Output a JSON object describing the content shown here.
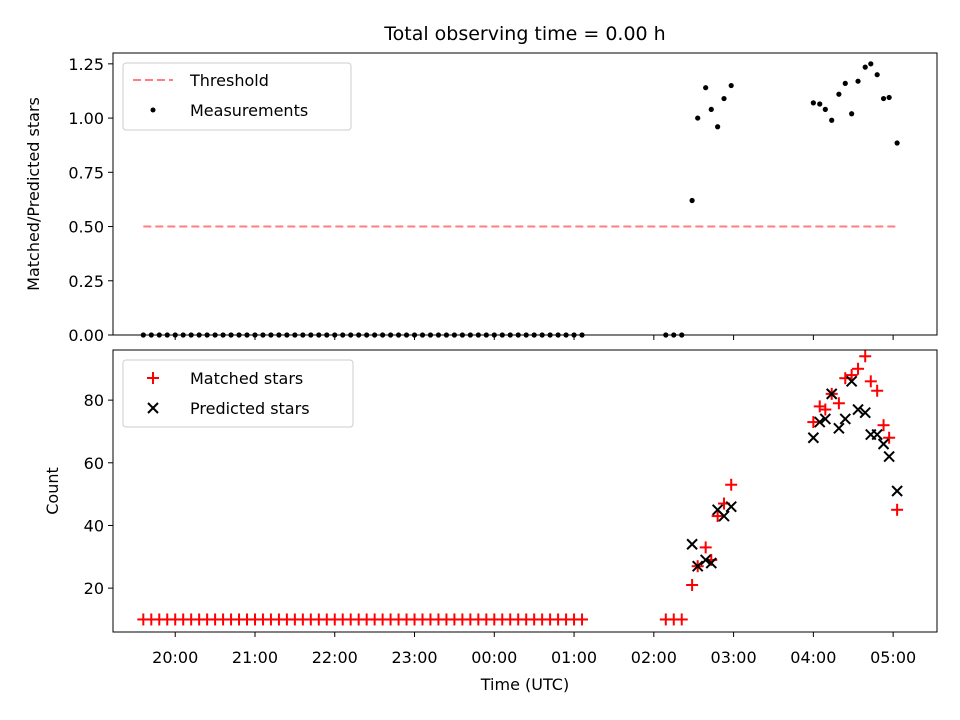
{
  "chart_data": [
    {
      "type": "scatter",
      "title": "Total observing time = 0.00 h",
      "ylabel": "Matched/Predicted stars",
      "xlabel": "",
      "ylim": [
        0,
        1.3
      ],
      "yticks": [
        "0.00",
        "0.25",
        "0.50",
        "0.75",
        "1.00",
        "1.25"
      ],
      "ytick_values": [
        0,
        0.25,
        0.5,
        0.75,
        1.0,
        1.25
      ],
      "xlim": [
        19.22,
        29.55
      ],
      "legend_position": "top-left",
      "threshold": {
        "name": "Threshold",
        "value": 0.5,
        "x_start": 19.6,
        "x_end": 29.05,
        "color": "#ff7f7f"
      },
      "series": [
        {
          "name": "Measurements",
          "color": "#000000",
          "x": [
            19.6,
            19.7,
            19.8,
            19.9,
            20.0,
            20.1,
            20.2,
            20.3,
            20.4,
            20.5,
            20.6,
            20.7,
            20.8,
            20.9,
            21.0,
            21.1,
            21.2,
            21.3,
            21.4,
            21.5,
            21.6,
            21.7,
            21.8,
            21.9,
            22.0,
            22.1,
            22.2,
            22.3,
            22.4,
            22.5,
            22.6,
            22.7,
            22.8,
            22.9,
            23.0,
            23.1,
            23.2,
            23.3,
            23.4,
            23.5,
            23.6,
            23.7,
            23.8,
            23.9,
            24.0,
            24.1,
            24.2,
            24.3,
            24.4,
            24.5,
            24.6,
            24.7,
            24.8,
            24.9,
            25.0,
            25.1,
            26.15,
            26.25,
            26.35,
            26.48,
            26.55,
            26.65,
            26.72,
            26.8,
            26.88,
            26.97,
            28.0,
            28.08,
            28.15,
            28.23,
            28.32,
            28.4,
            28.48,
            28.56,
            28.65,
            28.72,
            28.8,
            28.88,
            28.95,
            29.05
          ],
          "y": [
            0,
            0,
            0,
            0,
            0,
            0,
            0,
            0,
            0,
            0,
            0,
            0,
            0,
            0,
            0,
            0,
            0,
            0,
            0,
            0,
            0,
            0,
            0,
            0,
            0,
            0,
            0,
            0,
            0,
            0,
            0,
            0,
            0,
            0,
            0,
            0,
            0,
            0,
            0,
            0,
            0,
            0,
            0,
            0,
            0,
            0,
            0,
            0,
            0,
            0,
            0,
            0,
            0,
            0,
            0,
            0,
            0,
            0,
            0,
            0.62,
            1.0,
            1.14,
            1.04,
            0.96,
            1.09,
            1.15,
            1.07,
            1.065,
            1.04,
            0.99,
            1.11,
            1.16,
            1.02,
            1.17,
            1.235,
            1.25,
            1.2,
            1.09,
            1.095,
            0.885
          ]
        }
      ]
    },
    {
      "type": "scatter",
      "title": "",
      "ylabel": "Count",
      "xlabel": "Time (UTC)",
      "ylim": [
        6,
        96
      ],
      "yticks": [
        "20",
        "40",
        "60",
        "80"
      ],
      "ytick_values": [
        20,
        40,
        60,
        80
      ],
      "xlim": [
        19.22,
        29.55
      ],
      "xticks": [
        "20:00",
        "21:00",
        "22:00",
        "23:00",
        "00:00",
        "01:00",
        "02:00",
        "03:00",
        "04:00",
        "05:00"
      ],
      "xtick_values": [
        20,
        21,
        22,
        23,
        24,
        25,
        26,
        27,
        28,
        29
      ],
      "legend_position": "top-left",
      "series": [
        {
          "name": "Matched stars",
          "color": "#ff0000",
          "marker": "plus",
          "x": [
            19.6,
            19.7,
            19.8,
            19.9,
            20.0,
            20.1,
            20.2,
            20.3,
            20.4,
            20.5,
            20.6,
            20.7,
            20.8,
            20.9,
            21.0,
            21.1,
            21.2,
            21.3,
            21.4,
            21.5,
            21.6,
            21.7,
            21.8,
            21.9,
            22.0,
            22.1,
            22.2,
            22.3,
            22.4,
            22.5,
            22.6,
            22.7,
            22.8,
            22.9,
            23.0,
            23.1,
            23.2,
            23.3,
            23.4,
            23.5,
            23.6,
            23.7,
            23.8,
            23.9,
            24.0,
            24.1,
            24.2,
            24.3,
            24.4,
            24.5,
            24.6,
            24.7,
            24.8,
            24.9,
            25.0,
            25.1,
            26.15,
            26.25,
            26.35,
            26.48,
            26.55,
            26.65,
            26.72,
            26.8,
            26.88,
            26.97,
            28.0,
            28.08,
            28.15,
            28.23,
            28.32,
            28.4,
            28.48,
            28.56,
            28.65,
            28.72,
            28.8,
            28.88,
            28.95,
            29.05
          ],
          "y": [
            10,
            10,
            10,
            10,
            10,
            10,
            10,
            10,
            10,
            10,
            10,
            10,
            10,
            10,
            10,
            10,
            10,
            10,
            10,
            10,
            10,
            10,
            10,
            10,
            10,
            10,
            10,
            10,
            10,
            10,
            10,
            10,
            10,
            10,
            10,
            10,
            10,
            10,
            10,
            10,
            10,
            10,
            10,
            10,
            10,
            10,
            10,
            10,
            10,
            10,
            10,
            10,
            10,
            10,
            10,
            10,
            10,
            10,
            10,
            21,
            27,
            33,
            29,
            43,
            47,
            53,
            73,
            78,
            77,
            82,
            79,
            87,
            88,
            90,
            94,
            86,
            83,
            72,
            68,
            45
          ]
        },
        {
          "name": "Predicted stars",
          "color": "#000000",
          "marker": "x",
          "x": [
            26.48,
            26.55,
            26.65,
            26.72,
            26.8,
            26.88,
            26.97,
            28.0,
            28.08,
            28.15,
            28.23,
            28.32,
            28.4,
            28.48,
            28.56,
            28.65,
            28.72,
            28.8,
            28.88,
            28.95,
            29.05
          ],
          "y": [
            34,
            27,
            29,
            28,
            45,
            43,
            46,
            68,
            73,
            74,
            82,
            71,
            74,
            86,
            77,
            76,
            69,
            69,
            66,
            62,
            51
          ]
        }
      ]
    }
  ]
}
